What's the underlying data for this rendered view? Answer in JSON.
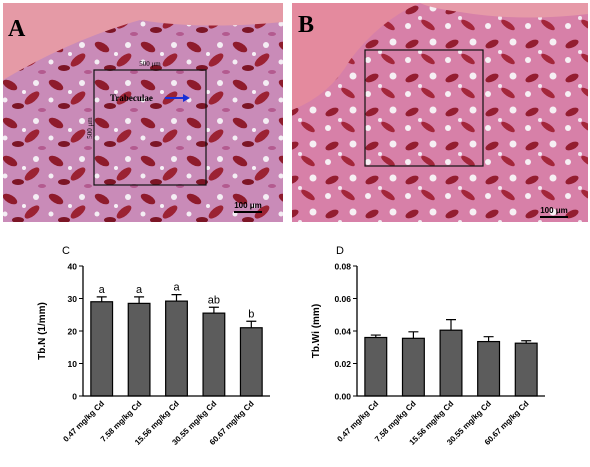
{
  "images": [
    {
      "panel": "A",
      "scale_bar": "100 μm",
      "box_width": "500 μm",
      "box_height": "500 μm",
      "pointer": "Trabeculae"
    },
    {
      "panel": "B",
      "scale_bar": "100 μm"
    }
  ],
  "chart_data": [
    {
      "type": "bar",
      "panel": "C",
      "ylabel": "Tb.N (1/mm)",
      "categories": [
        "0.47 mg/kg Cd",
        "7.58 mg/kg Cd",
        "15.56 mg/kg Cd",
        "30.55 mg/kg Cd",
        "60.67 mg/kg Cd"
      ],
      "values": [
        29,
        28.5,
        29.2,
        25.5,
        21
      ],
      "errors": [
        1.5,
        2,
        2,
        1.8,
        2
      ],
      "letters": [
        "a",
        "a",
        "a",
        "ab",
        "b"
      ],
      "color": "#5c5c5c",
      "ylim": [
        0,
        40
      ],
      "yticks": [
        0,
        10,
        20,
        30,
        40
      ]
    },
    {
      "type": "bar",
      "panel": "D",
      "ylabel": "Tb.Wi (mm)",
      "categories": [
        "0.47 mg/kg Cd",
        "7.58 mg/kg Cd",
        "15.56 mg/kg Cd",
        "30.55 mg/kg Cd",
        "60.67 mg/kg Cd"
      ],
      "values": [
        0.036,
        0.0355,
        0.0405,
        0.0335,
        0.0325
      ],
      "errors": [
        0.0015,
        0.004,
        0.0065,
        0.003,
        0.0015
      ],
      "color": "#5c5c5c",
      "ylim": [
        0,
        0.08
      ],
      "yticks": [
        {
          "value": 0,
          "label": "0.00"
        },
        {
          "value": 0.02,
          "label": "0.02"
        },
        {
          "value": 0.04,
          "label": "0.04"
        },
        {
          "value": 0.06,
          "label": "0.06"
        },
        {
          "value": 0.08,
          "label": "0.08"
        }
      ]
    }
  ]
}
